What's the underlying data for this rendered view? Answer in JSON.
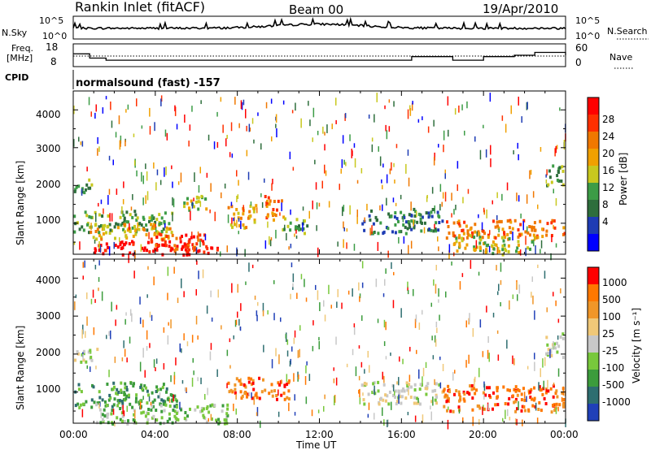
{
  "header": {
    "station": "Rankin Inlet (fitACF)",
    "beam": "Beam 00",
    "date": "19/Apr/2010"
  },
  "top_panels": {
    "nsky_label": "N.Sky",
    "nsky_ticks": [
      "10^5",
      "10^0"
    ],
    "nsearch_label": "N.Search",
    "nsearch_ticks": [
      "10^5",
      "10^0"
    ],
    "freq_label_1": "Freq.",
    "freq_label_2": "[MHz]",
    "freq_ticks": [
      "18",
      "8"
    ],
    "nave_label": "Nave",
    "nave_ticks": [
      "60",
      "0"
    ],
    "cpid_label": "CPID",
    "cpid_text": "normalsound (fast) -157"
  },
  "panels": {
    "power": {
      "ylabel": "Slant Range [km]",
      "yticks": [
        "4000",
        "3000",
        "2000",
        "1000"
      ],
      "colorbar_label": "Power [dB]",
      "colorbar_ticks": [
        "28",
        "24",
        "20",
        "16",
        "12",
        "8",
        "4"
      ],
      "colorbar_colors": [
        "#0000ff",
        "#1e3cb4",
        "#2e6e3c",
        "#3c9c46",
        "#c8c81e",
        "#f0a000",
        "#f07800",
        "#ff3000",
        "#ff0000"
      ]
    },
    "velocity": {
      "ylabel": "Slant Range [km]",
      "yticks": [
        "4000",
        "3000",
        "2000",
        "1000"
      ],
      "colorbar_label": "Velocity [m s⁻¹]",
      "colorbar_ticks": [
        "1000",
        "500",
        "100",
        "25",
        "-25",
        "-100",
        "-500",
        "-1000"
      ],
      "colorbar_colors": [
        "#2040b8",
        "#2e6e70",
        "#3c9c3c",
        "#78c83c",
        "#c8c8c8",
        "#f0c878",
        "#f09628",
        "#ff7800",
        "#ff0000"
      ]
    }
  },
  "x_axis": {
    "ticks": [
      "00:00",
      "04:00",
      "08:00",
      "12:00",
      "16:00",
      "20:00",
      "00:00"
    ],
    "label": "Time UT"
  },
  "chart_data": {
    "type": "heatmap",
    "title": "Rankin Inlet (fitACF)",
    "xlabel": "Time UT",
    "ylabel": "Slant Range [km]",
    "xlim": [
      0,
      24
    ],
    "ylim": [
      180,
      4500
    ],
    "power_echo_regions": [
      {
        "t": [
          0.0,
          1.0
        ],
        "r": [
          1800,
          2200
        ],
        "level": 3
      },
      {
        "t": [
          0.0,
          4.8
        ],
        "r": [
          750,
          1350
        ],
        "level": 3
      },
      {
        "t": [
          0.8,
          4.8
        ],
        "r": [
          600,
          1000
        ],
        "level": 5
      },
      {
        "t": [
          1.0,
          7.0
        ],
        "r": [
          180,
          550
        ],
        "level": 8
      },
      {
        "t": [
          3.5,
          6.5
        ],
        "r": [
          300,
          750
        ],
        "level": 7
      },
      {
        "t": [
          5.0,
          6.5
        ],
        "r": [
          1350,
          1750
        ],
        "level": 4
      },
      {
        "t": [
          7.5,
          9.0
        ],
        "r": [
          900,
          1500
        ],
        "level": 5
      },
      {
        "t": [
          9.3,
          10.2
        ],
        "r": [
          1100,
          1800
        ],
        "level": 6
      },
      {
        "t": [
          10.0,
          11.5
        ],
        "r": [
          750,
          1150
        ],
        "level": 3
      },
      {
        "t": [
          14.0,
          18.0
        ],
        "r": [
          750,
          1400
        ],
        "level": 2
      },
      {
        "t": [
          18.0,
          23.9
        ],
        "r": [
          600,
          1100
        ],
        "level": 6
      },
      {
        "t": [
          18.5,
          22.5
        ],
        "r": [
          180,
          700
        ],
        "level": 4
      },
      {
        "t": [
          23.0,
          23.9
        ],
        "r": [
          2000,
          2600
        ],
        "level": 3
      }
    ],
    "velocity_echo_regions": [
      {
        "t": [
          0.0,
          1.2
        ],
        "r": [
          1800,
          2200
        ],
        "cls": 4
      },
      {
        "t": [
          0.0,
          5.0
        ],
        "r": [
          600,
          1300
        ],
        "cls": 2
      },
      {
        "t": [
          1.0,
          7.5
        ],
        "r": [
          180,
          700
        ],
        "cls": 3
      },
      {
        "t": [
          7.5,
          10.5
        ],
        "r": [
          800,
          1400
        ],
        "cls": 7
      },
      {
        "t": [
          14.0,
          18.0
        ],
        "r": [
          700,
          1300
        ],
        "cls": 4
      },
      {
        "t": [
          18.0,
          23.9
        ],
        "r": [
          500,
          1200
        ],
        "cls": 7
      },
      {
        "t": [
          23.0,
          23.9
        ],
        "r": [
          1900,
          2600
        ],
        "cls": 4
      }
    ],
    "nave_steps_hours": [
      0,
      0.8,
      1.6,
      6.0,
      8.0,
      14.5,
      16.5,
      18.5,
      20.0,
      21.5,
      22.5,
      24
    ],
    "nave_levels": [
      34,
      22,
      16,
      16,
      16,
      16,
      26,
      16,
      26,
      30,
      38,
      30
    ]
  }
}
